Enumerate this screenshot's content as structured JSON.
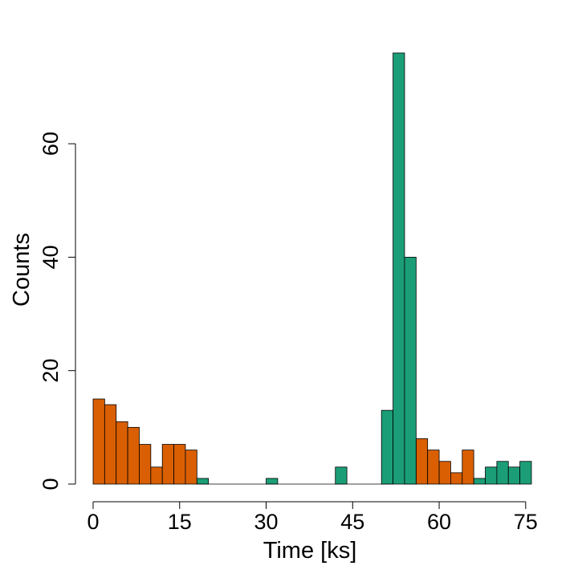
{
  "chart_data": {
    "type": "bar",
    "title": "",
    "xlabel": "Time [ks]",
    "ylabel": "Counts",
    "xlim": [
      0,
      76
    ],
    "ylim": [
      0,
      76
    ],
    "xticks": [
      0,
      15,
      30,
      45,
      60,
      75
    ],
    "xtick_labels": [
      "0",
      "15",
      "30",
      "45",
      "60",
      "75"
    ],
    "yticks": [
      0,
      20,
      40,
      60
    ],
    "ytick_labels": [
      "0",
      "20",
      "40",
      "60"
    ],
    "grid": false,
    "bin_width": 2,
    "series": [
      {
        "color": "#D95F02",
        "bins": [
          {
            "x": 0,
            "count": 15
          },
          {
            "x": 2,
            "count": 14
          },
          {
            "x": 4,
            "count": 11
          },
          {
            "x": 6,
            "count": 10
          },
          {
            "x": 8,
            "count": 7
          },
          {
            "x": 10,
            "count": 3
          },
          {
            "x": 12,
            "count": 7
          },
          {
            "x": 14,
            "count": 7
          },
          {
            "x": 16,
            "count": 6
          },
          {
            "x": 54,
            "count": 1
          },
          {
            "x": 56,
            "count": 8
          },
          {
            "x": 58,
            "count": 6
          },
          {
            "x": 60,
            "count": 4
          },
          {
            "x": 62,
            "count": 2
          },
          {
            "x": 64,
            "count": 6
          }
        ]
      },
      {
        "color": "#1B9E77",
        "bins": [
          {
            "x": 18,
            "count": 1
          },
          {
            "x": 30,
            "count": 1
          },
          {
            "x": 42,
            "count": 3
          },
          {
            "x": 50,
            "count": 13
          },
          {
            "x": 52,
            "count": 76
          },
          {
            "x": 54,
            "count": 40
          },
          {
            "x": 66,
            "count": 1
          },
          {
            "x": 68,
            "count": 3
          },
          {
            "x": 70,
            "count": 4
          },
          {
            "x": 72,
            "count": 3
          },
          {
            "x": 74,
            "count": 4
          }
        ]
      }
    ]
  }
}
